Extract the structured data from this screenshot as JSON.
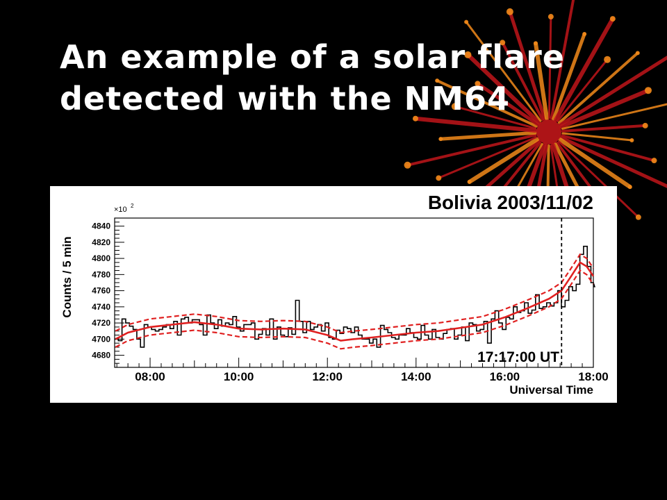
{
  "slide": {
    "title": "An example of a solar flare detected with the NM64"
  },
  "colors": {
    "background": "#000000",
    "title_text": "#ffffff",
    "histogram": "#000000",
    "average": "#e02020",
    "decoration_red": "#c0161a",
    "decoration_orange": "#f28a1a"
  },
  "decoration": {
    "icon": "fireworks-burst-decoration"
  },
  "chart_data": {
    "type": "line",
    "title": "Bolivia 2003/11/02",
    "xlabel": "Universal Time",
    "ylabel": "Counts / 5 min",
    "y_multiplier_label": "×10",
    "y_multiplier_exp": "2",
    "xlim": [
      7.2,
      18.0
    ],
    "ylim": [
      4665,
      4850
    ],
    "x_ticks": [
      8,
      10,
      12,
      14,
      16,
      18
    ],
    "x_tick_labels": [
      "08:00",
      "10:00",
      "12:00",
      "14:00",
      "16:00",
      "18:00"
    ],
    "y_ticks": [
      4680,
      4700,
      4720,
      4740,
      4760,
      4780,
      4800,
      4820,
      4840
    ],
    "y_tick_labels": [
      "4680",
      "4700",
      "4720",
      "4740",
      "4760",
      "4780",
      "4800",
      "4820",
      "4840"
    ],
    "grid": false,
    "bin_width_hours": 0.0833,
    "annotation": {
      "label": "17:17:00 UT",
      "x": 17.283
    },
    "series": [
      {
        "style": "step-histogram",
        "color": "#000000",
        "x_start": 7.2,
        "values": [
          4700,
          4698,
          4725,
          4720,
          4716,
          4712,
          4700,
          4690,
          4718,
          4715,
          4712,
          4710,
          4712,
          4715,
          4718,
          4713,
          4722,
          4705,
          4725,
          4727,
          4720,
          4724,
          4724,
          4718,
          4705,
          4730,
          4720,
          4713,
          4724,
          4716,
          4720,
          4718,
          4728,
          4715,
          4710,
          4718,
          4718,
          4720,
          4700,
          4706,
          4713,
          4705,
          4725,
          4700,
          4715,
          4705,
          4703,
          4714,
          4706,
          4748,
          4722,
          4708,
          4722,
          4712,
          4715,
          4718,
          4710,
          4720,
          4702,
          4700,
          4711,
          4707,
          4715,
          4713,
          4708,
          4715,
          4705,
          4700,
          4700,
          4695,
          4700,
          4690,
          4717,
          4712,
          4708,
          4702,
          4700,
          4705,
          4705,
          4713,
          4708,
          4702,
          4700,
          4717,
          4705,
          4700,
          4712,
          4702,
          4700,
          4707,
          4712,
          4713,
          4700,
          4705,
          4715,
          4698,
          4720,
          4718,
          4710,
          4712,
          4722,
          4695,
          4725,
          4735,
          4720,
          4712,
          4727,
          4725,
          4740,
          4733,
          4735,
          4745,
          4732,
          4736,
          4755,
          4738,
          4740,
          4745,
          4741,
          4745,
          4760,
          4740,
          4748,
          4765,
          4760,
          4768,
          4805,
          4815,
          4790,
          4770,
          4765
        ]
      },
      {
        "style": "line",
        "color": "#e02020",
        "x": [
          7.22,
          7.5,
          8.0,
          8.5,
          9.0,
          9.5,
          10.0,
          10.5,
          11.0,
          11.5,
          12.0,
          12.3,
          12.6,
          13.0,
          13.5,
          14.0,
          14.5,
          15.0,
          15.5,
          16.0,
          16.5,
          17.0,
          17.28,
          17.5,
          17.7,
          17.85,
          18.0
        ],
        "values": [
          4700,
          4708,
          4715,
          4718,
          4721,
          4718,
          4713,
          4712,
          4713,
          4712,
          4705,
          4698,
          4700,
          4702,
          4705,
          4708,
          4710,
          4714,
          4718,
          4727,
          4738,
          4750,
          4760,
          4778,
          4795,
          4790,
          4778
        ]
      },
      {
        "style": "dashed",
        "color": "#e02020",
        "x": [
          7.22,
          7.5,
          8.0,
          8.5,
          9.0,
          9.5,
          10.0,
          10.5,
          11.0,
          11.5,
          12.0,
          12.3,
          12.6,
          13.0,
          13.5,
          14.0,
          14.5,
          15.0,
          15.5,
          16.0,
          16.5,
          17.0,
          17.28,
          17.5,
          17.7,
          17.85,
          18.0
        ],
        "values": [
          4710,
          4718,
          4725,
          4728,
          4731,
          4728,
          4723,
          4722,
          4723,
          4722,
          4715,
          4708,
          4710,
          4712,
          4715,
          4718,
          4720,
          4724,
          4728,
          4737,
          4748,
          4760,
          4770,
          4788,
          4805,
          4800,
          4788
        ]
      },
      {
        "style": "dashed",
        "color": "#e02020",
        "x": [
          7.22,
          7.5,
          8.0,
          8.5,
          9.0,
          9.5,
          10.0,
          10.5,
          11.0,
          11.5,
          12.0,
          12.3,
          12.6,
          13.0,
          13.5,
          14.0,
          14.5,
          15.0,
          15.5,
          16.0,
          16.5,
          17.0,
          17.28,
          17.5,
          17.7,
          17.85,
          18.0
        ],
        "values": [
          4690,
          4698,
          4705,
          4708,
          4711,
          4708,
          4703,
          4702,
          4703,
          4702,
          4695,
          4688,
          4690,
          4692,
          4695,
          4698,
          4700,
          4704,
          4708,
          4717,
          4728,
          4740,
          4750,
          4768,
          4785,
          4780,
          4768
        ]
      }
    ]
  }
}
